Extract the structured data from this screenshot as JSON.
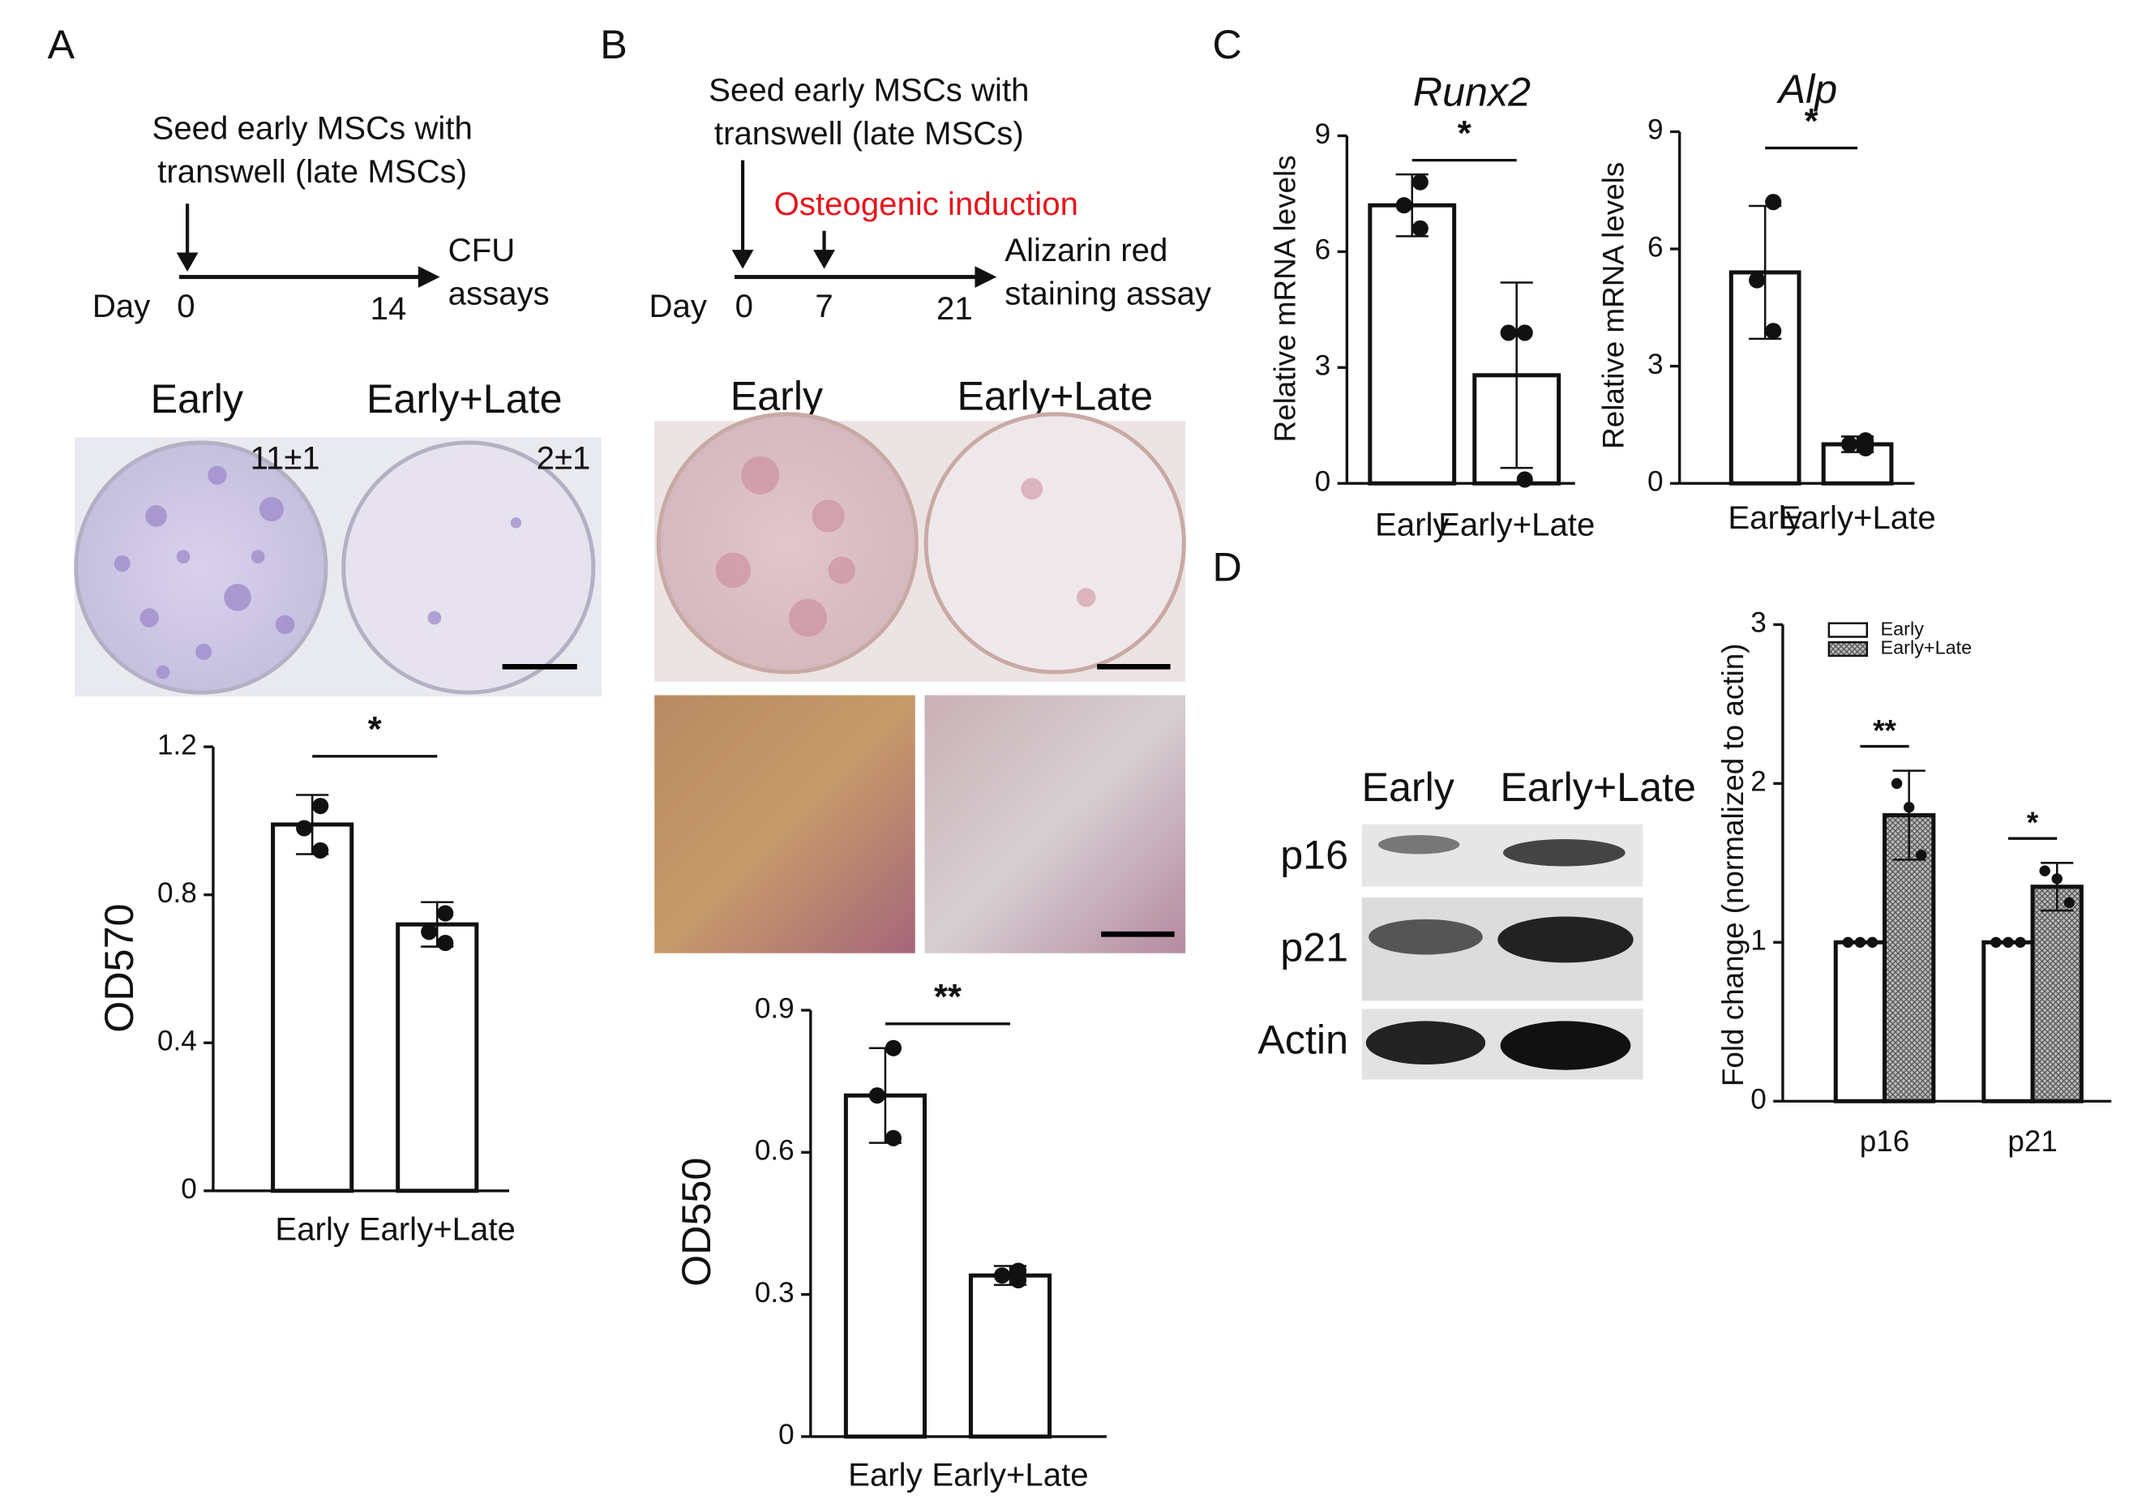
{
  "panel_labels": [
    "A",
    "B",
    "C",
    "D"
  ],
  "timeline_a": {
    "lines": [
      "Seed early MSCs with",
      "transwell  (late MSCs)"
    ],
    "day": "Day",
    "ticks": [
      "0",
      "14"
    ],
    "end": [
      "CFU",
      "assays"
    ]
  },
  "timeline_b": {
    "lines": [
      "Seed early MSCs with",
      "transwell  (late MSCs)"
    ],
    "induction": "Osteogenic  induction",
    "day": "Day",
    "ticks": [
      "0",
      "7",
      "21"
    ],
    "end": [
      "Alizarin red",
      "staining assay"
    ]
  },
  "photo_a": {
    "labels": [
      "Early",
      "Early+Late"
    ],
    "counts": [
      "11±1",
      "2±1"
    ]
  },
  "photo_b": {
    "labels": [
      "Early",
      "Early+Late"
    ]
  },
  "western_blot": {
    "lanes": [
      "Early",
      "Early+Late"
    ],
    "rows": [
      "p16",
      "p21",
      "Actin"
    ]
  },
  "chart_data": [
    {
      "type": "bar",
      "ylabel": "OD570",
      "categories": [
        "Early",
        "Early+Late"
      ],
      "values": [
        0.99,
        0.72
      ],
      "errors": [
        0.08,
        0.06
      ],
      "points": [
        [
          1.04,
          0.98,
          0.92
        ],
        [
          0.75,
          0.7,
          0.67
        ]
      ],
      "color": "#ffffff",
      "ylim": [
        0,
        1.2
      ],
      "yticks": [
        0,
        0.4,
        0.8,
        1.2
      ],
      "significance": "*"
    },
    {
      "type": "bar",
      "ylabel": "OD550",
      "categories": [
        "Early",
        "Early+Late"
      ],
      "values": [
        0.72,
        0.34
      ],
      "errors": [
        0.1,
        0.02
      ],
      "points": [
        [
          0.82,
          0.72,
          0.63
        ],
        [
          0.35,
          0.34,
          0.33
        ]
      ],
      "color": "#ffffff",
      "ylim": [
        0,
        0.9
      ],
      "yticks": [
        0,
        0.3,
        0.6,
        0.9
      ],
      "significance": "**"
    },
    {
      "type": "bar",
      "title": "Runx2",
      "ylabel": "Relative  mRNA  levels",
      "categories": [
        "Early",
        "Early+Late"
      ],
      "values": [
        7.2,
        2.8
      ],
      "errors": [
        0.8,
        2.4
      ],
      "points": [
        [
          7.8,
          7.2,
          6.6
        ],
        [
          3.9,
          3.9,
          0.1
        ]
      ],
      "color": "#ffffff",
      "ylim": [
        0,
        9
      ],
      "yticks": [
        0,
        3,
        6,
        9
      ],
      "significance": "*"
    },
    {
      "type": "bar",
      "title": "Alp",
      "ylabel": "Relative  mRNA  levels",
      "categories": [
        "Early",
        "Early+Late"
      ],
      "values": [
        5.4,
        1.0
      ],
      "errors": [
        1.7,
        0.2
      ],
      "points": [
        [
          7.2,
          5.2,
          3.9
        ],
        [
          1.1,
          1.0,
          0.9
        ]
      ],
      "color": "#ffffff",
      "ylim": [
        0,
        9
      ],
      "yticks": [
        0,
        3,
        6,
        9
      ],
      "significance": "*"
    },
    {
      "type": "bar",
      "ylabel": "Fold change (normalized to actin)",
      "categories": [
        "p16",
        "p21"
      ],
      "series": [
        {
          "name": "Early",
          "color": "#ffffff",
          "values": [
            1,
            1
          ],
          "errors": [
            0,
            0
          ],
          "points": [
            [
              1,
              1,
              1
            ],
            [
              1,
              1,
              1
            ]
          ]
        },
        {
          "name": "Early+Late",
          "color": "#9a9a9a",
          "values": [
            1.8,
            1.35
          ],
          "errors": [
            0.28,
            0.15
          ],
          "points": [
            [
              2.0,
              1.85,
              1.55
            ],
            [
              1.45,
              1.4,
              1.25
            ]
          ]
        }
      ],
      "ylim": [
        0,
        3
      ],
      "yticks": [
        0,
        1,
        2,
        3
      ],
      "significance": [
        "**",
        "*"
      ],
      "legend": "top-left"
    }
  ]
}
